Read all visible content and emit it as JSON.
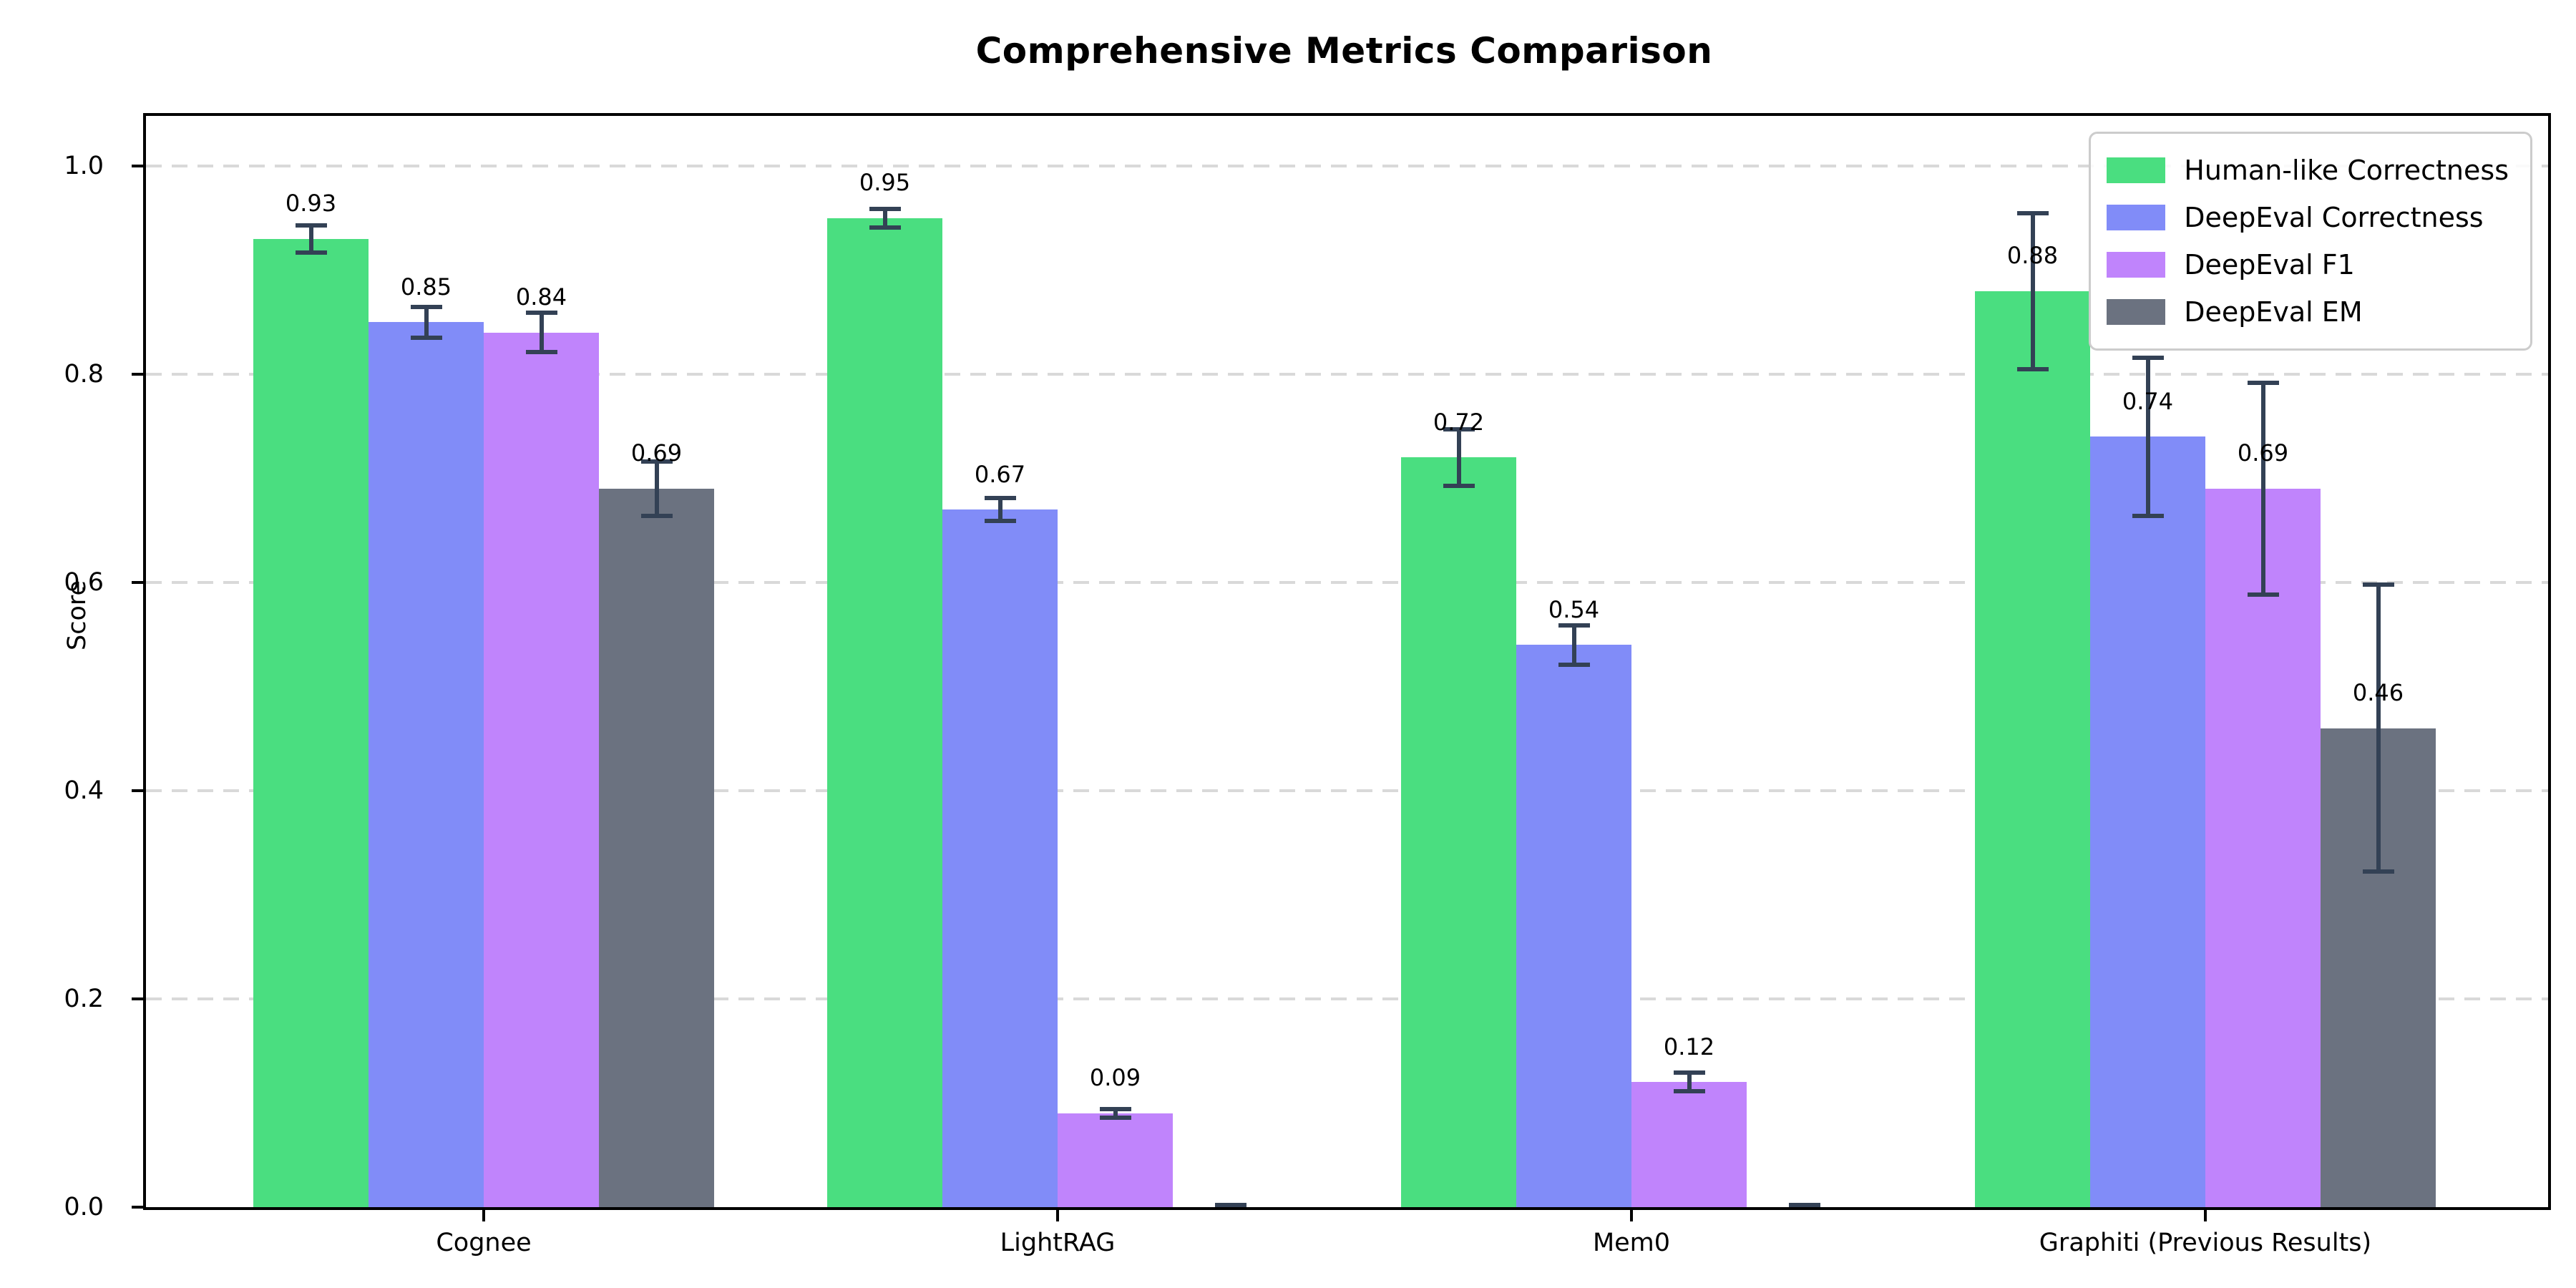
{
  "title": "Comprehensive Metrics Comparison",
  "ylabel": "Score",
  "chart_data": {
    "type": "bar",
    "title": "Comprehensive Metrics Comparison",
    "xlabel": "",
    "ylabel": "Score",
    "categories": [
      "Cognee",
      "LightRAG",
      "Mem0",
      "Graphiti (Previous Results)"
    ],
    "series": [
      {
        "name": "Human-like Correctness",
        "color": "#4ade80",
        "values": [
          0.93,
          0.95,
          0.72,
          0.88
        ],
        "errors": [
          0.015,
          0.011,
          0.029,
          0.077
        ],
        "labels": [
          "0.93",
          "0.95",
          "0.72",
          "0.88"
        ]
      },
      {
        "name": "DeepEval Correctness",
        "color": "#818cf8",
        "values": [
          0.85,
          0.67,
          0.54,
          0.74
        ],
        "errors": [
          0.017,
          0.013,
          0.021,
          0.078
        ],
        "labels": [
          "0.85",
          "0.67",
          "0.54",
          "0.74"
        ]
      },
      {
        "name": "DeepEval F1",
        "color": "#c084fc",
        "values": [
          0.84,
          0.09,
          0.12,
          0.69
        ],
        "errors": [
          0.021,
          0.006,
          0.011,
          0.104
        ],
        "labels": [
          "0.84",
          "0.09",
          "0.12",
          "0.69"
        ]
      },
      {
        "name": "DeepEval EM",
        "color": "#6b7280",
        "values": [
          0.69,
          0.0,
          0.0,
          0.46
        ],
        "errors": [
          0.028,
          0.004,
          0.004,
          0.14
        ],
        "labels": [
          "0.69",
          null,
          null,
          "0.46"
        ]
      }
    ],
    "yticks": [
      "0.0",
      "0.2",
      "0.4",
      "0.6",
      "0.8",
      "1.0"
    ],
    "ytick_values": [
      0.0,
      0.2,
      0.4,
      0.6,
      0.8,
      1.0
    ],
    "ylim": [
      0.0,
      1.048
    ],
    "grid": "horizontal-dashed",
    "gridline_color": "#d9d9d9",
    "errorbar_color": "#334155",
    "legend_position": "upper-right",
    "legend_entries": [
      "Human-like Correctness",
      "DeepEval Correctness",
      "DeepEval F1",
      "DeepEval EM"
    ]
  }
}
